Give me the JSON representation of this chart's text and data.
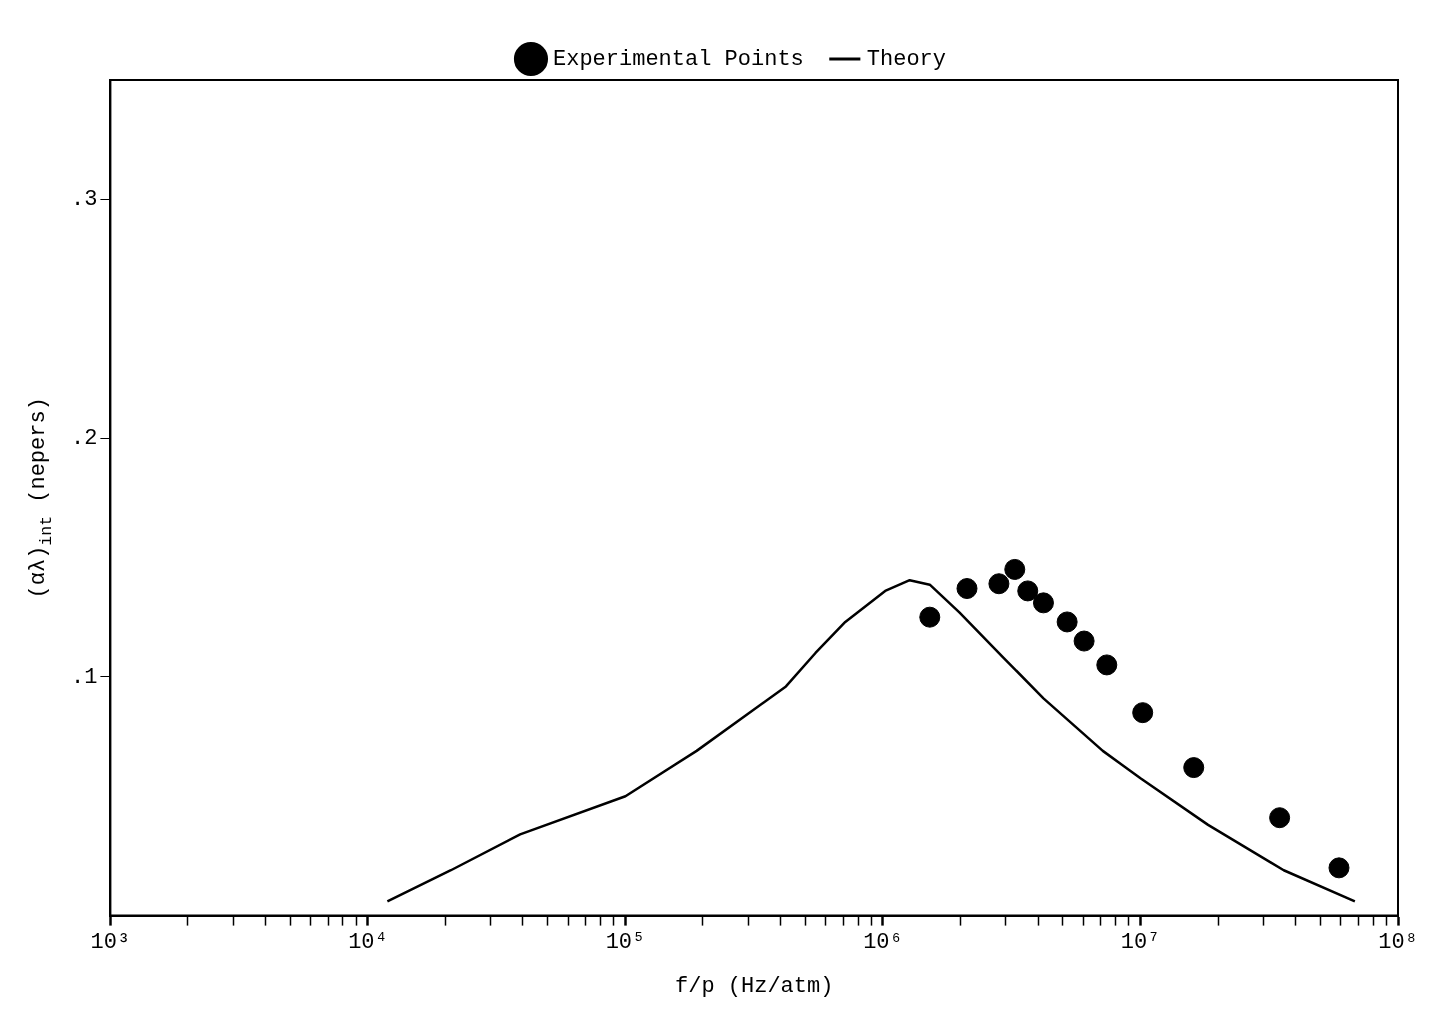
{
  "chart_data": {
    "type": "scatter",
    "xlabel": "f/p (Hz/atm)",
    "ylabel": "(αλ)$_{int}$ (nepers)",
    "log": "x",
    "grid": false,
    "legend": "top",
    "xlim": [
      1000,
      100000000
    ],
    "ylim": [
      0,
      0.35
    ],
    "xticks": [
      {
        "value": 1000,
        "label": "10³"
      },
      {
        "value": 2000,
        "label": null
      },
      {
        "value": 3000,
        "label": null
      },
      {
        "value": 4000,
        "label": null
      },
      {
        "value": 5000,
        "label": null
      },
      {
        "value": 6000,
        "label": null
      },
      {
        "value": 7000,
        "label": null
      },
      {
        "value": 8000,
        "label": null
      },
      {
        "value": 9000,
        "label": null
      },
      {
        "value": 10000,
        "label": "10⁴"
      },
      {
        "value": 20000,
        "label": null
      },
      {
        "value": 30000,
        "label": null
      },
      {
        "value": 40000,
        "label": null
      },
      {
        "value": 50000,
        "label": null
      },
      {
        "value": 60000,
        "label": null
      },
      {
        "value": 70000,
        "label": null
      },
      {
        "value": 80000,
        "label": null
      },
      {
        "value": 90000,
        "label": null
      },
      {
        "value": 100000,
        "label": "10⁵"
      },
      {
        "value": 200000,
        "label": null
      },
      {
        "value": 300000,
        "label": null
      },
      {
        "value": 400000,
        "label": null
      },
      {
        "value": 500000,
        "label": null
      },
      {
        "value": 600000,
        "label": null
      },
      {
        "value": 700000,
        "label": null
      },
      {
        "value": 800000,
        "label": null
      },
      {
        "value": 900000,
        "label": null
      },
      {
        "value": 1000000,
        "label": "10⁶"
      },
      {
        "value": 2000000,
        "label": null
      },
      {
        "value": 3000000,
        "label": null
      },
      {
        "value": 4000000,
        "label": null
      },
      {
        "value": 5000000,
        "label": null
      },
      {
        "value": 6000000,
        "label": null
      },
      {
        "value": 7000000,
        "label": null
      },
      {
        "value": 8000000,
        "label": null
      },
      {
        "value": 9000000,
        "label": null
      },
      {
        "value": 10000000,
        "label": "10⁷"
      },
      {
        "value": 20000000,
        "label": null
      },
      {
        "value": 30000000,
        "label": null
      },
      {
        "value": 40000000,
        "label": null
      },
      {
        "value": 50000000,
        "label": null
      },
      {
        "value": 60000000,
        "label": null
      },
      {
        "value": 70000000,
        "label": null
      },
      {
        "value": 80000000,
        "label": null
      },
      {
        "value": 90000000,
        "label": null
      },
      {
        "value": 100000000,
        "label": "10⁸"
      }
    ],
    "yticks": [
      {
        "value": 0.1,
        "label": ".1"
      },
      {
        "value": 0.2,
        "label": ".2"
      },
      {
        "value": 0.3,
        "label": ".3"
      }
    ],
    "series": [
      {
        "name": "Experimental Points",
        "type": "scatter",
        "marker": "circle",
        "color": "#000000",
        "x": [
          1520000,
          2120000,
          2820000,
          3250000,
          3650000,
          4200000,
          5190000,
          6040000,
          7400000,
          10200000,
          16100000,
          34700000,
          59000000
        ],
        "values": [
          0.125,
          0.137,
          0.139,
          0.145,
          0.136,
          0.131,
          0.123,
          0.115,
          0.105,
          0.085,
          0.062,
          0.041,
          0.02
        ]
      },
      {
        "name": "Theory",
        "type": "line",
        "marker": "none",
        "line_style": "solid",
        "color": "#000000",
        "x": [
          11900,
          21000,
          39000,
          100000,
          189000,
          420000,
          547000,
          714000,
          1020000,
          1270000,
          1520000,
          1980000,
          2940000,
          4200000,
          7140000,
          10000000,
          18300000,
          36000000,
          68000000
        ],
        "values": [
          0.006,
          0.019,
          0.034,
          0.05,
          0.069,
          0.096,
          0.11,
          0.123,
          0.136,
          0.1405,
          0.1386,
          0.127,
          0.108,
          0.091,
          0.069,
          0.0575,
          0.038,
          0.019,
          0.006
        ]
      }
    ]
  }
}
